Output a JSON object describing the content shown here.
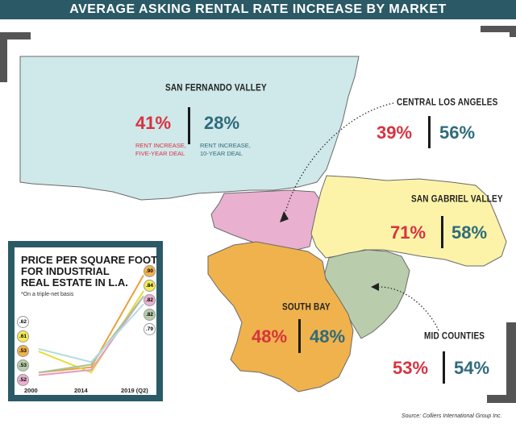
{
  "title": "AVERAGE ASKING RENTAL RATE INCREASE BY MARKET",
  "colors": {
    "title_bar": "#2b5a66",
    "five_year": "#d7333f",
    "ten_year": "#2e6b7a",
    "san_fernando_valley": "#cfe8ea",
    "central_los_angeles": "#e9b1cf",
    "san_gabriel_valley": "#fcf3a9",
    "south_bay": "#f0b24c",
    "mid_counties": "#b9cdac"
  },
  "regions": {
    "san_fernando_valley": {
      "name": "SAN FERNANDO VALLEY",
      "five_year": "41%",
      "ten_year": "28%",
      "five_year_label_1": "RENT INCREASE,",
      "five_year_label_2": "FIVE-YEAR DEAL",
      "ten_year_label_1": "RENT INCREASE,",
      "ten_year_label_2": "10-YEAR DEAL"
    },
    "central_los_angeles": {
      "name": "CENTRAL LOS ANGELES",
      "five_year": "39%",
      "ten_year": "56%"
    },
    "san_gabriel_valley": {
      "name": "SAN GABRIEL VALLEY",
      "five_year": "71%",
      "ten_year": "58%"
    },
    "south_bay": {
      "name": "SOUTH BAY",
      "five_year": "48%",
      "ten_year": "48%"
    },
    "mid_counties": {
      "name": "MID COUNTIES",
      "five_year": "53%",
      "ten_year": "54%"
    }
  },
  "inset": {
    "title_1": "PRICE PER SQUARE FOOT",
    "title_2": "FOR INDUSTRIAL",
    "title_3": "REAL ESTATE IN L.A.",
    "note": "*On a triple-net basis"
  },
  "chart_data": {
    "type": "line",
    "title": "PRICE PER SQUARE FOOT FOR INDUSTRIAL REAL ESTATE IN L.A.",
    "x": [
      "2000",
      "2014",
      "2019 (Q2)"
    ],
    "series": [
      {
        "color": "#e8a23a",
        "badge_color": "#f0b24c",
        "values": [
          0.53,
          0.55,
          0.9
        ],
        "start_label": ".53",
        "end_label": ".90"
      },
      {
        "color": "#e6dc3a",
        "badge_color": "#f5ea5a",
        "values": [
          0.61,
          0.53,
          0.84
        ],
        "start_label": ".61",
        "end_label": ".84"
      },
      {
        "color": "#e59ac6",
        "badge_color": "#e9b1cf",
        "values": [
          0.52,
          0.54,
          0.82
        ],
        "start_label": ".52",
        "end_label": ".82"
      },
      {
        "color": "#a9c39a",
        "badge_color": "#b9cdac",
        "values": [
          0.53,
          0.56,
          0.82
        ],
        "start_label": ".53",
        "end_label": ".82"
      },
      {
        "color": "#b4dde0",
        "badge_color": "#cfe8ea",
        "values": [
          0.62,
          0.57,
          0.79
        ],
        "start_label": ".62",
        "end_label": ".79"
      }
    ]
  },
  "source": "Source: Colliers International Group Inc."
}
